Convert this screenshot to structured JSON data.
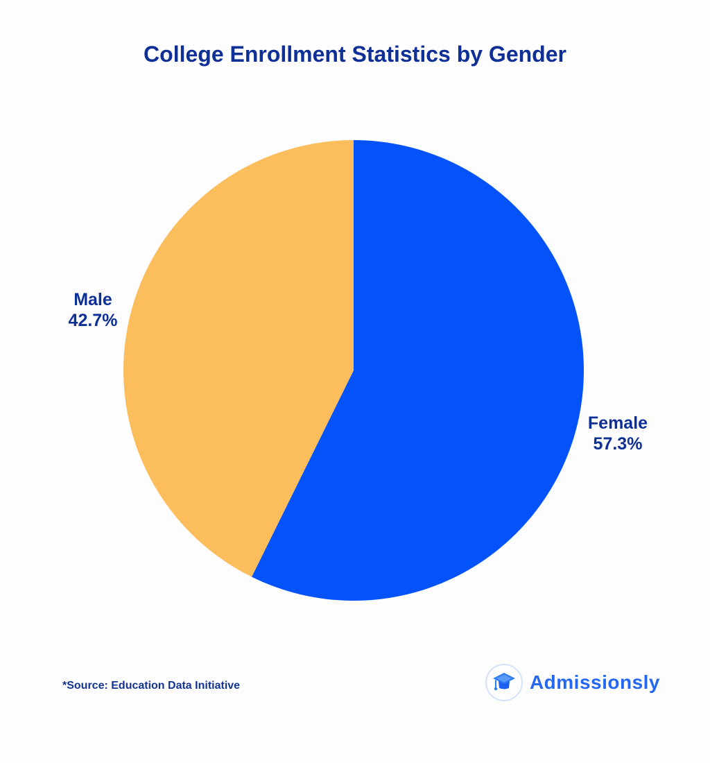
{
  "page": {
    "background": "#fdfdfd"
  },
  "title": {
    "text": "College Enrollment Statistics by Gender",
    "color": "#0d2f96"
  },
  "chart_data": {
    "type": "pie",
    "title": "College Enrollment Statistics by Gender",
    "start_angle_deg": 0,
    "direction": "clockwise",
    "legend_position": "none",
    "labels": "outside",
    "slices": [
      {
        "label": "Female",
        "value": 57.3,
        "pct_label": "57.3%",
        "color": "#0453fa"
      },
      {
        "label": "Male",
        "value": 42.7,
        "pct_label": "42.7%",
        "color": "#fcbd5d"
      }
    ]
  },
  "source_note": {
    "text": "*Source: Education Data Initiative",
    "color": "#123494"
  },
  "logo": {
    "brand": "Admissionsly",
    "icon": "graduation-cap-icon",
    "text_color": "#2468f2",
    "badge_ring_color": "#d3e3fb",
    "cap_color": "#2f7cf6"
  }
}
